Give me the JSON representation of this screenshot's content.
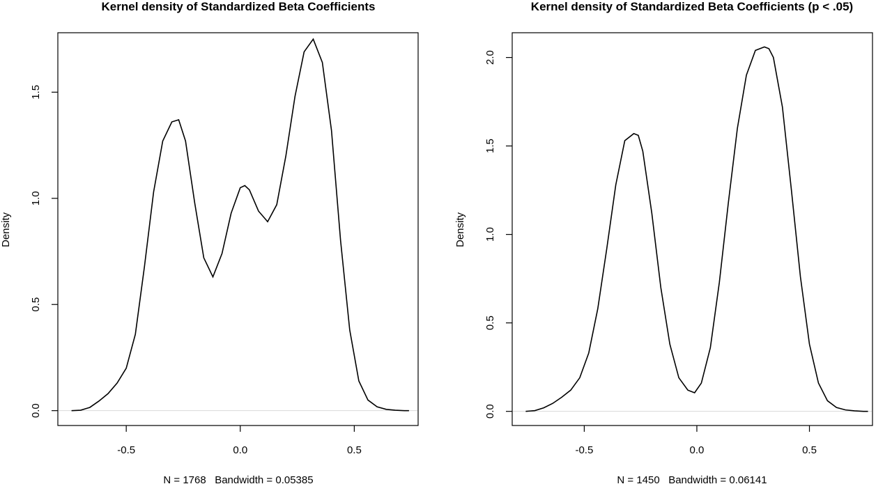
{
  "chart_data": [
    {
      "type": "line",
      "title": "Kernel density of Standardized Beta Coefficients",
      "xlabel": "N = 1768   Bandwidth = 0.05385",
      "ylabel": "Density",
      "xlim": [
        -0.8,
        0.78
      ],
      "ylim": [
        -0.07,
        1.78
      ],
      "xticks": [
        -0.5,
        0.0,
        0.5
      ],
      "xtick_labels": [
        "-0.5",
        "0.0",
        "0.5"
      ],
      "yticks": [
        0.0,
        0.5,
        1.0,
        1.5
      ],
      "ytick_labels": [
        "0.0",
        "0.5",
        "1.0",
        "1.5"
      ],
      "grid": false,
      "series": [
        {
          "x": [
            -0.74,
            -0.7,
            -0.66,
            -0.62,
            -0.58,
            -0.54,
            -0.5,
            -0.46,
            -0.42,
            -0.38,
            -0.34,
            -0.3,
            -0.27,
            -0.24,
            -0.2,
            -0.16,
            -0.12,
            -0.08,
            -0.04,
            0.0,
            0.02,
            0.04,
            0.08,
            0.12,
            0.16,
            0.2,
            0.24,
            0.28,
            0.32,
            0.36,
            0.4,
            0.44,
            0.48,
            0.52,
            0.56,
            0.6,
            0.64,
            0.68,
            0.72,
            0.74
          ],
          "values": [
            0.0,
            0.002,
            0.015,
            0.045,
            0.08,
            0.13,
            0.2,
            0.36,
            0.68,
            1.03,
            1.27,
            1.36,
            1.37,
            1.27,
            0.98,
            0.72,
            0.63,
            0.74,
            0.93,
            1.05,
            1.06,
            1.04,
            0.94,
            0.89,
            0.97,
            1.2,
            1.48,
            1.69,
            1.75,
            1.64,
            1.32,
            0.8,
            0.38,
            0.14,
            0.05,
            0.018,
            0.006,
            0.002,
            0.0,
            0.0
          ]
        }
      ]
    },
    {
      "type": "line",
      "title": "Kernel density of Standardized Beta Coefficients (p < .05)",
      "xlabel": "N = 1450   Bandwidth = 0.06141",
      "ylabel": "Density",
      "xlim": [
        -0.82,
        0.78
      ],
      "ylim": [
        -0.08,
        2.14
      ],
      "xticks": [
        -0.5,
        0.0,
        0.5
      ],
      "xtick_labels": [
        "-0.5",
        "0.0",
        "0.5"
      ],
      "yticks": [
        0.0,
        0.5,
        1.0,
        1.5,
        2.0
      ],
      "ytick_labels": [
        "0.0",
        "0.5",
        "1.0",
        "1.5",
        "2.0"
      ],
      "grid": false,
      "series": [
        {
          "x": [
            -0.76,
            -0.72,
            -0.68,
            -0.64,
            -0.6,
            -0.56,
            -0.52,
            -0.48,
            -0.44,
            -0.4,
            -0.36,
            -0.32,
            -0.28,
            -0.26,
            -0.24,
            -0.2,
            -0.16,
            -0.12,
            -0.08,
            -0.04,
            -0.01,
            0.02,
            0.06,
            0.1,
            0.14,
            0.18,
            0.22,
            0.26,
            0.3,
            0.32,
            0.34,
            0.38,
            0.42,
            0.46,
            0.5,
            0.54,
            0.58,
            0.62,
            0.66,
            0.7,
            0.74,
            0.76
          ],
          "values": [
            0.0,
            0.004,
            0.02,
            0.045,
            0.08,
            0.12,
            0.19,
            0.33,
            0.58,
            0.92,
            1.28,
            1.53,
            1.57,
            1.56,
            1.47,
            1.12,
            0.7,
            0.38,
            0.19,
            0.12,
            0.105,
            0.16,
            0.36,
            0.73,
            1.18,
            1.6,
            1.9,
            2.04,
            2.06,
            2.05,
            2.0,
            1.72,
            1.25,
            0.76,
            0.38,
            0.16,
            0.06,
            0.022,
            0.008,
            0.003,
            0.0,
            0.0
          ]
        }
      ]
    }
  ]
}
